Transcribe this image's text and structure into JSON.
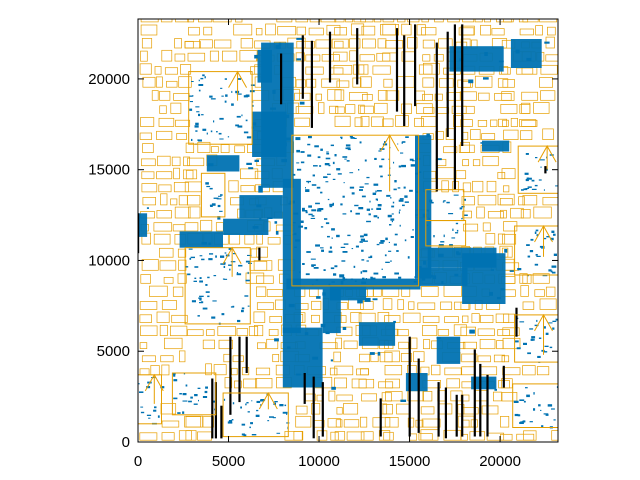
{
  "chart_data": {
    "type": "scatter",
    "title": "",
    "xlabel": "",
    "ylabel": "",
    "xlim": [
      0,
      23200
    ],
    "ylim": [
      0,
      23300
    ],
    "x_ticks": [
      0,
      5000,
      10000,
      15000,
      20000
    ],
    "y_ticks": [
      0,
      5000,
      10000,
      15000,
      20000
    ],
    "grid": false,
    "legend": "none",
    "colors": {
      "cells": "#e69f00",
      "routing": "#0072b2",
      "pins": "#000000",
      "frame": "#000000"
    },
    "macros": [
      {
        "name": "macro-center",
        "x": [
          8500,
          15500
        ],
        "y": [
          8600,
          16900
        ],
        "arrow_from": [
          13900,
          16900
        ],
        "arrow_to": [
          13900,
          13800
        ]
      },
      {
        "name": "macro-top-left",
        "x": [
          2800,
          6300
        ],
        "y": [
          16400,
          20400
        ],
        "arrow_from": [
          5500,
          20400
        ],
        "arrow_to": [
          5500,
          18800
        ]
      },
      {
        "name": "macro-mid-left",
        "x": [
          2600,
          6200
        ],
        "y": [
          6500,
          10700
        ],
        "arrow_from": [
          5200,
          10700
        ],
        "arrow_to": [
          5200,
          9100
        ]
      },
      {
        "name": "macro-left-small",
        "x": [
          3500,
          4800
        ],
        "y": [
          12400,
          14800
        ],
        "arrow_from": null,
        "arrow_to": null
      },
      {
        "name": "macro-bottom-left",
        "x": [
          1900,
          4300
        ],
        "y": [
          1500,
          3800
        ],
        "arrow_from": null,
        "arrow_to": null
      },
      {
        "name": "macro-bottom-mid",
        "x": [
          4700,
          8300
        ],
        "y": [
          300,
          2700
        ],
        "arrow_from": [
          7200,
          2700
        ],
        "arrow_to": [
          7200,
          1800
        ]
      },
      {
        "name": "macro-bottom-far-left",
        "x": [
          0,
          1300
        ],
        "y": [
          1000,
          3700
        ],
        "arrow_from": [
          900,
          3700
        ],
        "arrow_to": [
          900,
          2100
        ]
      },
      {
        "name": "macro-right-top",
        "x": [
          21000,
          23200
        ],
        "y": [
          13700,
          16300
        ],
        "arrow_from": [
          22600,
          16300
        ],
        "arrow_to": [
          22600,
          15000
        ]
      },
      {
        "name": "macro-right-mid",
        "x": [
          20800,
          23200
        ],
        "y": [
          9200,
          11900
        ],
        "arrow_from": [
          22400,
          11900
        ],
        "arrow_to": [
          22400,
          10200
        ]
      },
      {
        "name": "macro-right-lower",
        "x": [
          20800,
          23200
        ],
        "y": [
          4400,
          7000
        ],
        "arrow_from": [
          22400,
          7000
        ],
        "arrow_to": [
          22400,
          4800
        ]
      },
      {
        "name": "macro-right-bottom",
        "x": [
          20700,
          23200
        ],
        "y": [
          800,
          3200
        ],
        "arrow_from": null,
        "arrow_to": null
      },
      {
        "name": "macro-mid-right",
        "x": [
          15900,
          18000
        ],
        "y": [
          12200,
          13900
        ],
        "arrow_from": null,
        "arrow_to": null
      },
      {
        "name": "macro-mid-right-2",
        "x": [
          15900,
          18100
        ],
        "y": [
          10800,
          12200
        ],
        "arrow_from": null,
        "arrow_to": null
      }
    ],
    "routing_regions": [
      [
        8000,
        6000,
        9000,
        14500
      ],
      [
        6800,
        14000,
        8600,
        22000
      ],
      [
        8200,
        8400,
        15600,
        9000
      ],
      [
        15300,
        9000,
        16200,
        16900
      ],
      [
        15500,
        8600,
        18200,
        9600
      ],
      [
        16000,
        9600,
        19800,
        10700
      ],
      [
        17900,
        7600,
        20300,
        10400
      ],
      [
        2300,
        10700,
        4700,
        11600
      ],
      [
        4700,
        11400,
        7200,
        12300
      ],
      [
        5600,
        12300,
        8000,
        13600
      ],
      [
        6300,
        15700,
        8200,
        18200
      ],
      [
        3800,
        14900,
        5600,
        15800
      ],
      [
        8000,
        3000,
        10200,
        6300
      ],
      [
        10200,
        6000,
        11200,
        8400
      ],
      [
        12200,
        5300,
        14200,
        6600
      ],
      [
        16500,
        4300,
        17800,
        5800
      ],
      [
        14800,
        2800,
        16000,
        3800
      ],
      [
        18400,
        2900,
        19800,
        3600
      ],
      [
        0,
        11300,
        500,
        12600
      ],
      [
        17200,
        20400,
        20200,
        21800
      ],
      [
        19000,
        16000,
        20500,
        16600
      ],
      [
        10600,
        7800,
        12600,
        8600
      ],
      [
        6600,
        19800,
        7400,
        21600
      ],
      [
        20600,
        20600,
        22300,
        22200
      ]
    ],
    "cell_rows": {
      "y_start": 100,
      "y_end": 23200,
      "row_height": 720,
      "columns": [
        [
          100,
          2600
        ],
        [
          2600,
          6400
        ],
        [
          6400,
          8300
        ],
        [
          8600,
          10800
        ],
        [
          10800,
          12200
        ],
        [
          12200,
          13500
        ],
        [
          13500,
          15600
        ],
        [
          15600,
          17800
        ],
        [
          17800,
          20000
        ],
        [
          20000,
          21100
        ],
        [
          21100,
          22900
        ]
      ]
    },
    "pin_columns": [
      [
        4100,
        200,
        3500
      ],
      [
        4300,
        200,
        3300
      ],
      [
        4600,
        200,
        2000
      ],
      [
        5100,
        1500,
        5800
      ],
      [
        5600,
        2200,
        5800
      ],
      [
        6000,
        3800,
        5800
      ],
      [
        9200,
        2100,
        3800
      ],
      [
        9700,
        200,
        3600
      ],
      [
        10200,
        300,
        3300
      ],
      [
        13400,
        300,
        2400
      ],
      [
        15000,
        300,
        5800
      ],
      [
        15500,
        500,
        4600
      ],
      [
        16600,
        300,
        3300
      ],
      [
        17000,
        200,
        3000
      ],
      [
        17600,
        300,
        2600
      ],
      [
        17900,
        300,
        2600
      ],
      [
        18600,
        300,
        5100
      ],
      [
        18900,
        300,
        4300
      ],
      [
        19300,
        300,
        3700
      ],
      [
        20200,
        3000,
        4200
      ],
      [
        16500,
        13800,
        22000
      ],
      [
        17100,
        16800,
        22600
      ],
      [
        17500,
        13900,
        23000
      ],
      [
        17900,
        16300,
        23000
      ],
      [
        14300,
        18200,
        22800
      ],
      [
        14700,
        17400,
        22400
      ],
      [
        15300,
        18500,
        23000
      ],
      [
        12100,
        19700,
        22800
      ],
      [
        10600,
        19800,
        22600
      ],
      [
        9600,
        17300,
        22100
      ],
      [
        9100,
        18900,
        22400
      ],
      [
        7900,
        18600,
        21400
      ],
      [
        0,
        10400,
        12600
      ],
      [
        6700,
        10000,
        10700
      ],
      [
        22500,
        14800,
        15200
      ],
      [
        20900,
        5800,
        7400
      ]
    ],
    "seed": 7
  }
}
